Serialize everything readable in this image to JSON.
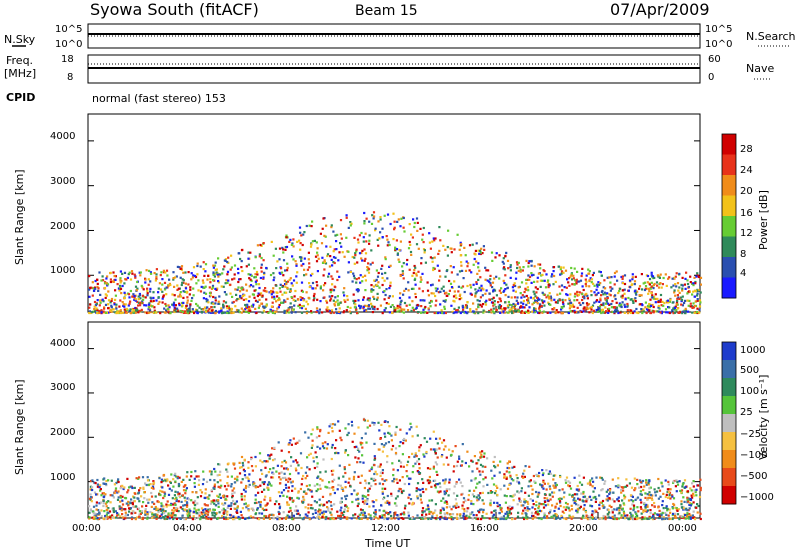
{
  "header": {
    "station": "Syowa South (fitACF)",
    "beam": "Beam 15",
    "date": "07/Apr/2009"
  },
  "top_panels": {
    "nsky_label": "N.Sky",
    "nsearch_label": "N.Search",
    "noise_ticks_left": [
      "10^5",
      "10^0"
    ],
    "noise_ticks_right": [
      "10^5",
      "10^0"
    ],
    "freq_label_1": "Freq.",
    "freq_label_2": "[MHz]",
    "freq_ticks": [
      "18",
      "8"
    ],
    "nave_label": "Nave",
    "nave_ticks": [
      "60",
      "0"
    ],
    "cpid_label": "CPID",
    "cpid_value": "normal (fast stereo) 153"
  },
  "chart_data": [
    {
      "type": "heatmap",
      "panel": "power",
      "ylabel": "Slant Range [km]",
      "yticks": [
        "1000",
        "2000",
        "3000",
        "4000"
      ],
      "ylim": [
        180,
        4600
      ],
      "xlim": [
        0,
        24
      ],
      "colorbar_label": "Power [dB]",
      "colorbar_ticks": [
        "4",
        "8",
        "12",
        "16",
        "20",
        "24",
        "28"
      ],
      "colorbar_colors": [
        "#1a1aff",
        "#2a4fb0",
        "#2f8a5a",
        "#66cc33",
        "#f2c21a",
        "#f08c1a",
        "#e8321a",
        "#d00000"
      ]
    },
    {
      "type": "heatmap",
      "panel": "velocity",
      "ylabel": "Slant Range [km]",
      "yticks": [
        "1000",
        "2000",
        "3000",
        "4000"
      ],
      "ylim": [
        180,
        4600
      ],
      "xlim": [
        0,
        24
      ],
      "xlabel": "Time UT",
      "xticks": [
        "00:00",
        "04:00",
        "08:00",
        "12:00",
        "16:00",
        "20:00",
        "00:00"
      ],
      "colorbar_label": "Velocity [m s⁻¹]",
      "colorbar_ticks": [
        "1000",
        "500",
        "100",
        "25",
        "−25",
        "−100",
        "−500",
        "−1000"
      ],
      "colorbar_colors": [
        "#1e3ccc",
        "#3a6fa8",
        "#2e8a5c",
        "#55c43a",
        "#bfbfbf",
        "#f5c040",
        "#f08c1a",
        "#e84a1a",
        "#d00000"
      ]
    }
  ]
}
